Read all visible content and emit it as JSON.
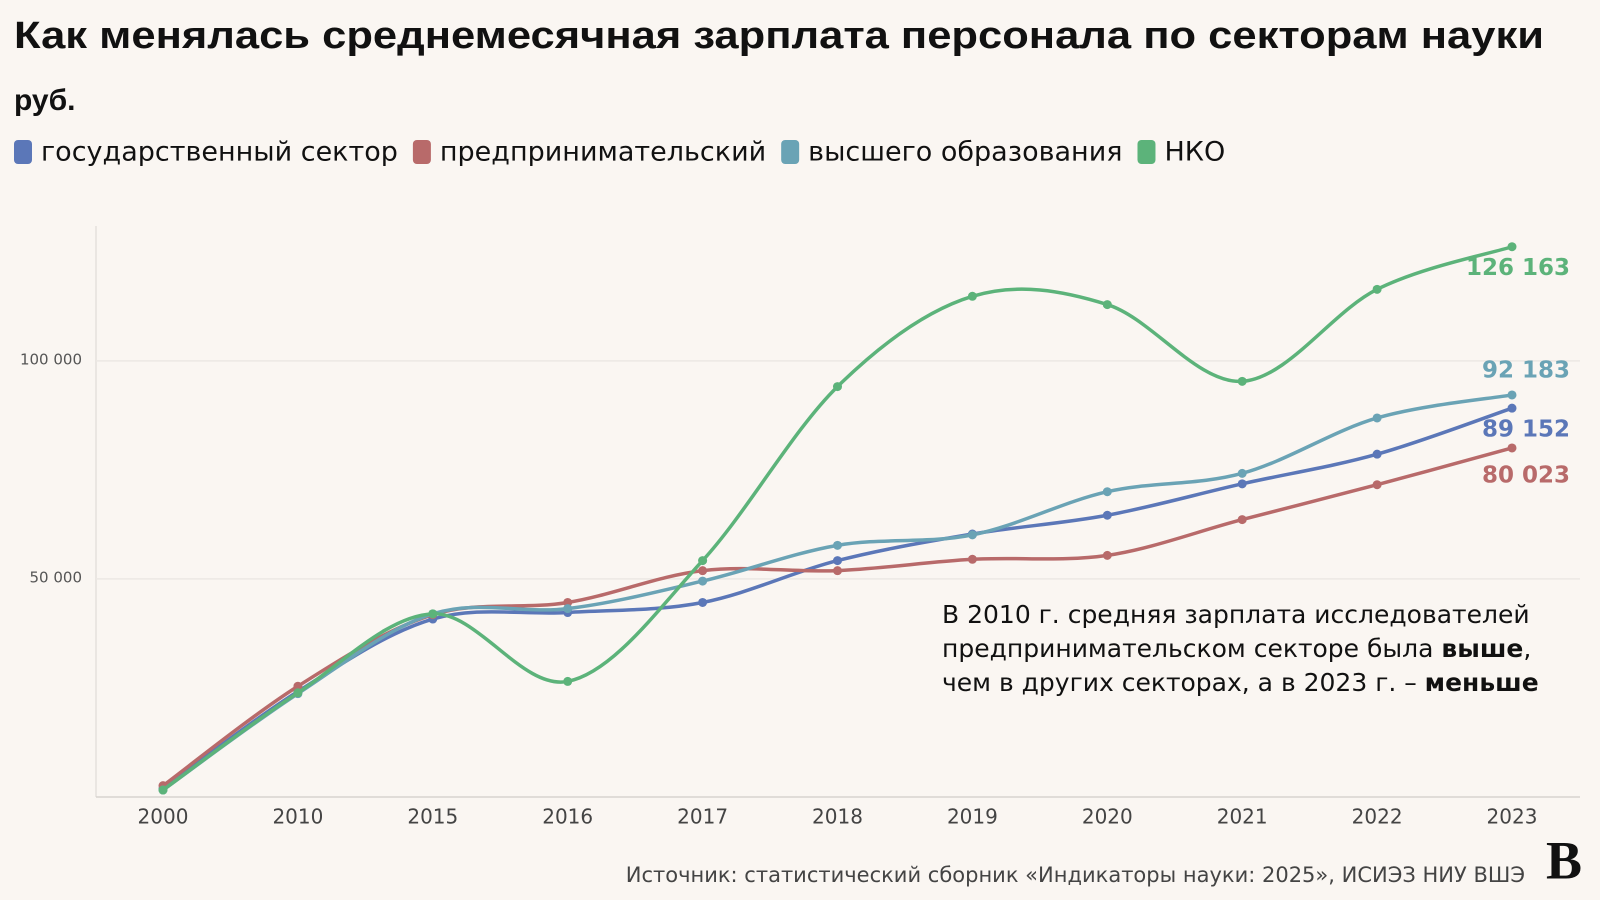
{
  "chart_data": {
    "type": "line",
    "title": "Как менялась среднемесячная зарплата персонала по секторам науки",
    "subtitle": "руб.",
    "categories": [
      "2000",
      "2010",
      "2015",
      "2016",
      "2017",
      "2018",
      "2019",
      "2020",
      "2021",
      "2022",
      "2023"
    ],
    "series": [
      {
        "name": "государственный сектор",
        "color": "#5b77b8",
        "values": [
          1900,
          24200,
          40800,
          42300,
          44600,
          54200,
          60300,
          64600,
          71800,
          78600,
          89152
        ],
        "value_labels": [
          null,
          null,
          null,
          null,
          null,
          null,
          null,
          null,
          null,
          null,
          "89 152"
        ]
      },
      {
        "name": "предпринимательский",
        "color": "#b86a6a",
        "values": [
          2600,
          25400,
          41800,
          44600,
          51900,
          51900,
          54500,
          55400,
          63600,
          71600,
          80023
        ],
        "value_labels": [
          null,
          null,
          null,
          null,
          null,
          null,
          null,
          null,
          null,
          null,
          "80 023"
        ]
      },
      {
        "name": "высшего образования",
        "color": "#6aa3b5",
        "values": [
          1600,
          23700,
          42000,
          43200,
          49500,
          57700,
          60100,
          70000,
          74200,
          86900,
          92183
        ],
        "value_labels": [
          null,
          null,
          null,
          null,
          null,
          null,
          null,
          null,
          null,
          null,
          "92 183"
        ]
      },
      {
        "name": "НКО",
        "color": "#5cb37a",
        "values": [
          1600,
          23900,
          42000,
          26500,
          54200,
          94100,
          114800,
          112900,
          95300,
          116400,
          126163
        ],
        "value_labels": [
          null,
          null,
          null,
          null,
          null,
          null,
          null,
          null,
          null,
          null,
          "126 163"
        ]
      }
    ],
    "ylim": [
      0,
      130000
    ],
    "yticks": [
      {
        "value": 50000,
        "label": "50 000"
      },
      {
        "value": 100000,
        "label": "100 000"
      }
    ],
    "grid": true,
    "annotation": [
      "В 2010 г. средняя зарплата исследователей",
      "предпринимательском секторе была ",
      "выше",
      ",",
      "чем в других секторах, а в 2023 г. – ",
      "меньше"
    ],
    "source": "Источник: статистический сборник «Индикаторы науки: 2025», ИСИЭЗ НИУ ВШЭ",
    "logo": "В"
  }
}
